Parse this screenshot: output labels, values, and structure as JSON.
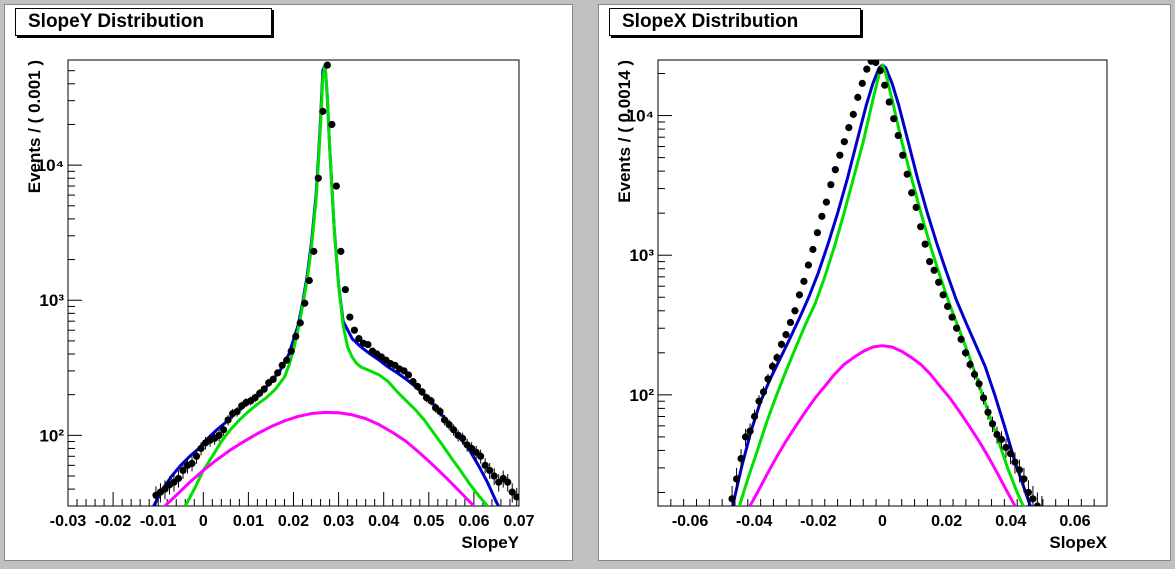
{
  "canvas": {
    "background": "#c0c0c0",
    "pad_background": "#ffffff"
  },
  "panels": [
    {
      "title": "SlopeY Distribution",
      "xlabel": "SlopeY",
      "ylabel": "Events / ( 0.001 )"
    },
    {
      "title": "SlopeX Distribution",
      "xlabel": "SlopeX",
      "ylabel": "Events / ( 0.0014 )"
    }
  ],
  "chart_data": [
    {
      "type": "scatter",
      "title": "SlopeY Distribution",
      "xlabel": "SlopeY",
      "ylabel": "Events / ( 0.001 )",
      "x_scale": "linear",
      "y_scale": "log",
      "xlim": [
        -0.03,
        0.07
      ],
      "ylim": [
        30,
        60000
      ],
      "x_ticks": [
        -0.03,
        -0.02,
        -0.01,
        0,
        0.01,
        0.02,
        0.03,
        0.04,
        0.05,
        0.06,
        0.07
      ],
      "x_tick_labels": [
        "-0.03",
        "-0.02",
        "-0.01",
        "0",
        "0.01",
        "0.02",
        "0.03",
        "0.04",
        "0.05",
        "0.06",
        "0.07"
      ],
      "y_ticks": [
        100,
        1000,
        10000
      ],
      "y_tick_labels": [
        "10²",
        "10³",
        "10⁴"
      ],
      "grid": false,
      "series": [
        {
          "kind": "points",
          "color": "#000000",
          "x": [
            -0.0105,
            -0.0095,
            -0.0085,
            -0.0075,
            -0.0065,
            -0.0055,
            -0.0045,
            -0.0035,
            -0.0025,
            -0.0015,
            -0.0005,
            0.0005,
            0.0015,
            0.0025,
            0.0035,
            0.0045,
            0.0055,
            0.0065,
            0.0075,
            0.0085,
            0.0095,
            0.0105,
            0.0115,
            0.0125,
            0.0135,
            0.0145,
            0.0155,
            0.0165,
            0.0175,
            0.0185,
            0.0195,
            0.0205,
            0.0215,
            0.0225,
            0.0235,
            0.0245,
            0.0255,
            0.0265,
            0.0275,
            0.0285,
            0.0295,
            0.0305,
            0.0315,
            0.0325,
            0.0335,
            0.0345,
            0.0355,
            0.0365,
            0.0375,
            0.0385,
            0.0395,
            0.0405,
            0.0415,
            0.0425,
            0.0435,
            0.0445,
            0.0455,
            0.0465,
            0.0475,
            0.0485,
            0.0495,
            0.0505,
            0.0515,
            0.0525,
            0.0535,
            0.0545,
            0.0555,
            0.0565,
            0.0575,
            0.0585,
            0.0595,
            0.0605,
            0.0615,
            0.0625,
            0.0635,
            0.0645,
            0.0655,
            0.0665,
            0.0675,
            0.0685,
            0.0695
          ],
          "y": [
            36,
            38,
            40,
            43,
            45,
            48,
            55,
            60,
            62,
            70,
            80,
            88,
            92,
            95,
            100,
            110,
            130,
            145,
            150,
            165,
            175,
            180,
            190,
            205,
            220,
            245,
            260,
            290,
            330,
            360,
            420,
            540,
            680,
            950,
            1400,
            2300,
            8000,
            25000,
            55000,
            20000,
            7000,
            2300,
            1200,
            750,
            600,
            520,
            480,
            470,
            420,
            400,
            380,
            360,
            340,
            330,
            310,
            300,
            280,
            250,
            230,
            210,
            190,
            180,
            160,
            150,
            130,
            120,
            110,
            100,
            95,
            85,
            80,
            75,
            70,
            60,
            55,
            50,
            45,
            48,
            45,
            38,
            35
          ]
        },
        {
          "kind": "line",
          "name": "",
          "color": "#0000cc",
          "x": [
            -0.011,
            -0.009,
            -0.007,
            -0.005,
            -0.003,
            -0.001,
            0.001,
            0.003,
            0.005,
            0.007,
            0.009,
            0.011,
            0.013,
            0.015,
            0.017,
            0.019,
            0.021,
            0.022,
            0.023,
            0.024,
            0.025,
            0.0255,
            0.026,
            0.0265,
            0.027,
            0.0275,
            0.028,
            0.029,
            0.03,
            0.031,
            0.033,
            0.035,
            0.037,
            0.039,
            0.041,
            0.043,
            0.045,
            0.047,
            0.049,
            0.051,
            0.053,
            0.055,
            0.057,
            0.059,
            0.061,
            0.063,
            0.065,
            0.067
          ],
          "y": [
            30,
            40,
            50,
            60,
            70,
            80,
            95,
            110,
            125,
            145,
            165,
            185,
            210,
            250,
            300,
            400,
            650,
            950,
            1500,
            2700,
            6000,
            11000,
            22000,
            50000,
            55000,
            32000,
            14000,
            3500,
            1300,
            700,
            520,
            450,
            400,
            360,
            320,
            290,
            260,
            230,
            200,
            170,
            140,
            115,
            95,
            78,
            60,
            45,
            32,
            24
          ]
        },
        {
          "kind": "line",
          "name": "",
          "color": "#00e000",
          "x": [
            -0.004,
            -0.002,
            0,
            0.002,
            0.004,
            0.006,
            0.008,
            0.01,
            0.012,
            0.014,
            0.016,
            0.018,
            0.019,
            0.02,
            0.021,
            0.022,
            0.023,
            0.024,
            0.025,
            0.0255,
            0.026,
            0.0265,
            0.027,
            0.0275,
            0.028,
            0.029,
            0.03,
            0.031,
            0.032,
            0.033,
            0.034,
            0.035,
            0.037,
            0.039,
            0.041,
            0.043,
            0.045,
            0.047,
            0.049,
            0.051,
            0.053,
            0.055,
            0.057,
            0.059,
            0.061,
            0.063,
            0.065
          ],
          "y": [
            30,
            40,
            55,
            70,
            90,
            110,
            130,
            150,
            170,
            190,
            220,
            270,
            330,
            430,
            600,
            900,
            1400,
            2500,
            5500,
            10000,
            20000,
            45000,
            55000,
            32000,
            14000,
            3500,
            1300,
            650,
            450,
            380,
            340,
            320,
            300,
            280,
            250,
            210,
            180,
            155,
            130,
            105,
            85,
            68,
            55,
            44,
            36,
            30,
            24
          ]
        },
        {
          "kind": "line",
          "name": "",
          "color": "#ff00ff",
          "x": [
            -0.009,
            -0.006,
            -0.003,
            0,
            0.003,
            0.006,
            0.009,
            0.012,
            0.015,
            0.018,
            0.021,
            0.024,
            0.027,
            0.03,
            0.033,
            0.036,
            0.039,
            0.042,
            0.045,
            0.048,
            0.051,
            0.054,
            0.057,
            0.06
          ],
          "y": [
            29,
            36,
            45,
            55,
            66,
            78,
            90,
            103,
            116,
            128,
            138,
            145,
            148,
            147,
            142,
            133,
            120,
            105,
            90,
            74,
            60,
            48,
            38,
            30
          ]
        }
      ]
    },
    {
      "type": "scatter",
      "title": "SlopeX Distribution",
      "xlabel": "SlopeX",
      "ylabel": "Events / ( 0.0014 )",
      "x_scale": "linear",
      "y_scale": "log",
      "xlim": [
        -0.07,
        0.07
      ],
      "ylim": [
        16,
        25000
      ],
      "x_ticks": [
        -0.06,
        -0.04,
        -0.02,
        0,
        0.02,
        0.04,
        0.06
      ],
      "x_tick_labels": [
        "-0.06",
        "-0.04",
        "-0.02",
        "0",
        "0.02",
        "0.04",
        "0.06"
      ],
      "y_ticks": [
        100,
        1000,
        10000
      ],
      "y_tick_labels": [
        "10²",
        "10³",
        "10⁴"
      ],
      "grid": false,
      "series": [
        {
          "kind": "points",
          "color": "#000000",
          "x": [
            -0.0469,
            -0.0455,
            -0.0441,
            -0.0427,
            -0.0413,
            -0.0399,
            -0.0385,
            -0.0371,
            -0.0357,
            -0.0343,
            -0.0329,
            -0.0315,
            -0.0301,
            -0.0287,
            -0.0273,
            -0.0259,
            -0.0245,
            -0.0231,
            -0.0217,
            -0.0203,
            -0.0189,
            -0.0175,
            -0.0161,
            -0.0147,
            -0.0133,
            -0.0119,
            -0.0105,
            -0.0091,
            -0.0077,
            -0.0063,
            -0.0049,
            -0.0035,
            -0.0021,
            -0.0007,
            0.0007,
            0.0021,
            0.0035,
            0.0049,
            0.0063,
            0.0077,
            0.0091,
            0.0105,
            0.0119,
            0.0133,
            0.0147,
            0.0161,
            0.0175,
            0.0189,
            0.0203,
            0.0217,
            0.0231,
            0.0245,
            0.0259,
            0.0273,
            0.0287,
            0.0301,
            0.0315,
            0.0329,
            0.0343,
            0.0357,
            0.0371,
            0.0385,
            0.0399,
            0.0413,
            0.0427,
            0.0441,
            0.0455,
            0.0469,
            0.0483,
            0.0497
          ],
          "y": [
            18,
            25,
            35,
            50,
            55,
            70,
            90,
            105,
            130,
            160,
            185,
            230,
            270,
            330,
            400,
            520,
            650,
            850,
            1100,
            1450,
            1900,
            2400,
            3200,
            4100,
            5200,
            6500,
            8200,
            10200,
            13500,
            17000,
            21500,
            24500,
            24000,
            21000,
            16500,
            12500,
            9500,
            7200,
            5200,
            3800,
            2800,
            2200,
            1600,
            1200,
            900,
            780,
            640,
            520,
            430,
            360,
            300,
            250,
            200,
            165,
            140,
            120,
            95,
            75,
            62,
            52,
            48,
            42,
            38,
            33,
            29,
            25,
            20,
            18,
            16,
            15
          ]
        },
        {
          "kind": "line",
          "name": "",
          "color": "#0000cc",
          "x": [
            -0.047,
            -0.044,
            -0.041,
            -0.038,
            -0.035,
            -0.032,
            -0.029,
            -0.026,
            -0.023,
            -0.02,
            -0.017,
            -0.014,
            -0.011,
            -0.008,
            -0.005,
            -0.003,
            -0.001,
            0,
            0.001,
            0.003,
            0.005,
            0.008,
            0.011,
            0.014,
            0.017,
            0.02,
            0.023,
            0.026,
            0.029,
            0.032,
            0.035,
            0.038,
            0.041,
            0.044,
            0.047
          ],
          "y": [
            15,
            30,
            55,
            90,
            130,
            180,
            250,
            350,
            500,
            750,
            1200,
            2000,
            3500,
            6500,
            12000,
            17000,
            22000,
            23000,
            22000,
            17000,
            12000,
            6500,
            3500,
            2000,
            1200,
            750,
            480,
            330,
            230,
            160,
            100,
            60,
            35,
            22,
            14
          ]
        },
        {
          "kind": "line",
          "name": "",
          "color": "#00e000",
          "x": [
            -0.045,
            -0.042,
            -0.039,
            -0.036,
            -0.033,
            -0.03,
            -0.027,
            -0.024,
            -0.021,
            -0.018,
            -0.015,
            -0.012,
            -0.009,
            -0.006,
            -0.003,
            -0.001,
            0,
            0.001,
            0.003,
            0.006,
            0.009,
            0.012,
            0.015,
            0.018,
            0.021,
            0.024,
            0.027,
            0.03,
            0.033,
            0.036,
            0.039,
            0.042,
            0.045
          ],
          "y": [
            15,
            25,
            40,
            65,
            100,
            150,
            220,
            320,
            450,
            700,
            1150,
            2000,
            3600,
            6500,
            13000,
            20000,
            23000,
            20000,
            13000,
            6500,
            3600,
            2000,
            1150,
            700,
            440,
            290,
            190,
            120,
            75,
            48,
            30,
            20,
            14
          ]
        },
        {
          "kind": "line",
          "name": "",
          "color": "#ff00ff",
          "x": [
            -0.042,
            -0.039,
            -0.036,
            -0.033,
            -0.03,
            -0.027,
            -0.024,
            -0.021,
            -0.018,
            -0.015,
            -0.012,
            -0.009,
            -0.006,
            -0.003,
            0,
            0.003,
            0.006,
            0.009,
            0.012,
            0.015,
            0.018,
            0.021,
            0.024,
            0.027,
            0.03,
            0.033,
            0.036,
            0.039,
            0.042
          ],
          "y": [
            15,
            20,
            27,
            36,
            47,
            60,
            76,
            95,
            115,
            140,
            165,
            185,
            205,
            220,
            225,
            220,
            205,
            185,
            165,
            140,
            115,
            95,
            76,
            60,
            47,
            36,
            27,
            20,
            15
          ]
        }
      ]
    }
  ]
}
